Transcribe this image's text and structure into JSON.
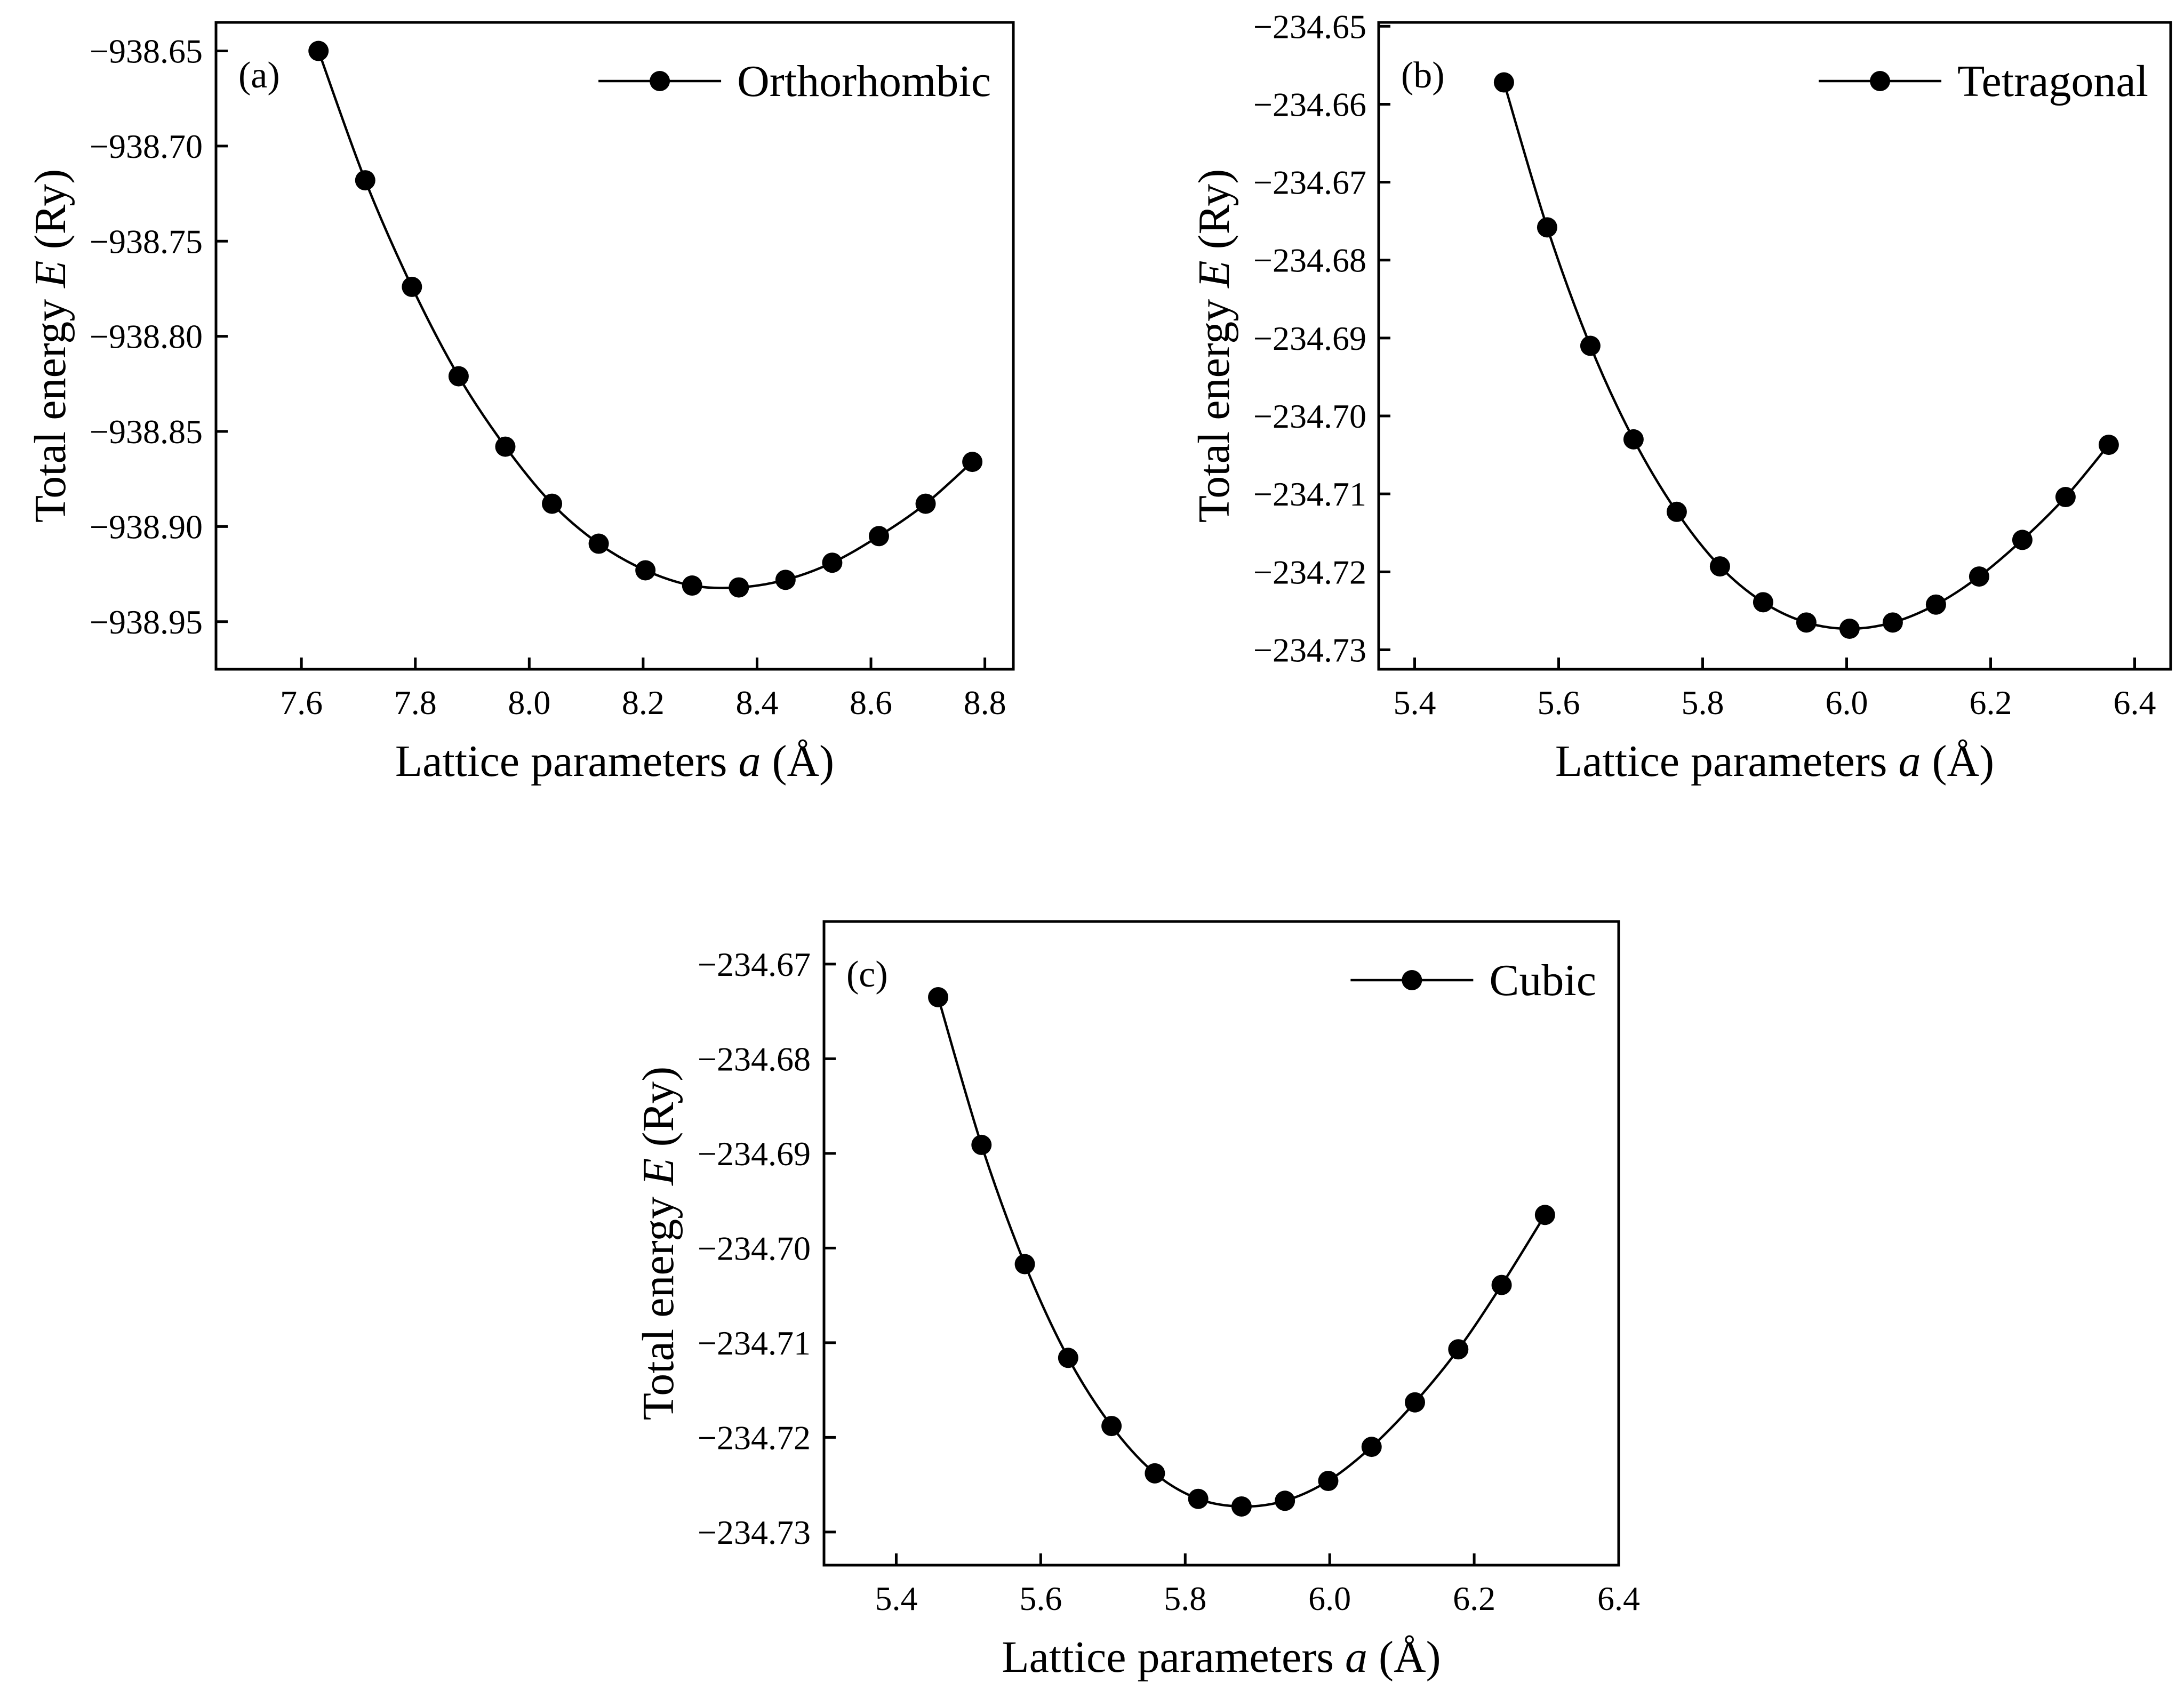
{
  "chart_data": [
    {
      "type": "line",
      "panel_label": "(a)",
      "legend": "Orthorhombic",
      "legend_position": "top-right",
      "xlabel_prefix": "Lattice parameters ",
      "xlabel_var": "a",
      "xlabel_suffix": " (Å)",
      "ylabel_prefix": "Total energy ",
      "ylabel_var": "E",
      "ylabel_suffix": " (Ry)",
      "xlim": [
        7.45,
        8.85
      ],
      "ylim": [
        -938.975,
        -938.635
      ],
      "xticks": [
        7.6,
        7.8,
        8.0,
        8.2,
        8.4,
        8.6,
        8.8
      ],
      "xtick_labels": [
        "7.6",
        "7.8",
        "8.0",
        "8.2",
        "8.4",
        "8.6",
        "8.8"
      ],
      "yticks": [
        -938.65,
        -938.7,
        -938.75,
        -938.8,
        -938.85,
        -938.9,
        -938.95
      ],
      "ytick_labels": [
        "−938.65",
        "−938.70",
        "−938.75",
        "−938.80",
        "−938.85",
        "−938.90",
        "−938.95"
      ],
      "series": [
        {
          "name": "Orthorhombic",
          "x": [
            7.63,
            7.712,
            7.794,
            7.876,
            7.958,
            8.04,
            8.122,
            8.204,
            8.286,
            8.368,
            8.45,
            8.532,
            8.614,
            8.696,
            8.778
          ],
          "y": [
            -938.65,
            -938.718,
            -938.774,
            -938.821,
            -938.858,
            -938.888,
            -938.909,
            -938.923,
            -938.931,
            -938.932,
            -938.928,
            -938.919,
            -938.905,
            -938.888,
            -938.866
          ]
        }
      ]
    },
    {
      "type": "line",
      "panel_label": "(b)",
      "legend": "Tetragonal",
      "legend_position": "top-right",
      "xlabel_prefix": "Lattice parameters ",
      "xlabel_var": "a",
      "xlabel_suffix": " (Å)",
      "ylabel_prefix": "Total energy ",
      "ylabel_var": "E",
      "ylabel_suffix": " (Ry)",
      "xlim": [
        5.35,
        6.45
      ],
      "ylim": [
        -234.7325,
        -234.6495
      ],
      "xticks": [
        5.4,
        5.6,
        5.8,
        6.0,
        6.2,
        6.4
      ],
      "xtick_labels": [
        "5.4",
        "5.6",
        "5.8",
        "6.0",
        "6.2",
        "6.4"
      ],
      "yticks": [
        -234.65,
        -234.66,
        -234.67,
        -234.68,
        -234.69,
        -234.7,
        -234.71,
        -234.72,
        -234.73
      ],
      "ytick_labels": [
        "−234.65",
        "−234.66",
        "−234.67",
        "−234.68",
        "−234.69",
        "−234.70",
        "−234.71",
        "−234.72",
        "−234.73"
      ],
      "series": [
        {
          "name": "Tetragonal",
          "x": [
            5.524,
            5.584,
            5.644,
            5.704,
            5.764,
            5.824,
            5.884,
            5.944,
            6.004,
            6.064,
            6.124,
            6.184,
            6.244,
            6.304,
            6.364
          ],
          "y": [
            -234.6572,
            -234.6758,
            -234.691,
            -234.703,
            -234.7123,
            -234.7193,
            -234.7239,
            -234.7265,
            -234.7273,
            -234.7265,
            -234.7242,
            -234.7206,
            -234.7159,
            -234.7104,
            -234.7037
          ]
        }
      ]
    },
    {
      "type": "line",
      "panel_label": "(c)",
      "legend": "Cubic",
      "legend_position": "top-right",
      "xlabel_prefix": "Lattice parameters ",
      "xlabel_var": "a",
      "xlabel_suffix": " (Å)",
      "ylabel_prefix": "Total energy ",
      "ylabel_var": "E",
      "ylabel_suffix": " (Ry)",
      "xlim": [
        5.3,
        6.4
      ],
      "ylim": [
        -234.7335,
        -234.6655
      ],
      "xticks": [
        5.4,
        5.6,
        5.8,
        6.0,
        6.2,
        6.4
      ],
      "xtick_labels": [
        "5.4",
        "5.6",
        "5.8",
        "6.0",
        "6.2",
        "6.4"
      ],
      "yticks": [
        -234.67,
        -234.68,
        -234.69,
        -234.7,
        -234.71,
        -234.72,
        -234.73
      ],
      "ytick_labels": [
        "−234.67",
        "−234.68",
        "−234.69",
        "−234.70",
        "−234.71",
        "−234.72",
        "−234.73"
      ],
      "series": [
        {
          "name": "Cubic",
          "x": [
            5.458,
            5.518,
            5.578,
            5.638,
            5.698,
            5.758,
            5.818,
            5.878,
            5.938,
            5.998,
            6.058,
            6.118,
            6.178,
            6.238,
            6.298
          ],
          "y": [
            -234.6735,
            -234.6891,
            -234.7017,
            -234.7116,
            -234.7188,
            -234.7238,
            -234.7265,
            -234.7273,
            -234.7267,
            -234.7246,
            -234.721,
            -234.7163,
            -234.7107,
            -234.7039,
            -234.6965
          ]
        }
      ]
    }
  ]
}
